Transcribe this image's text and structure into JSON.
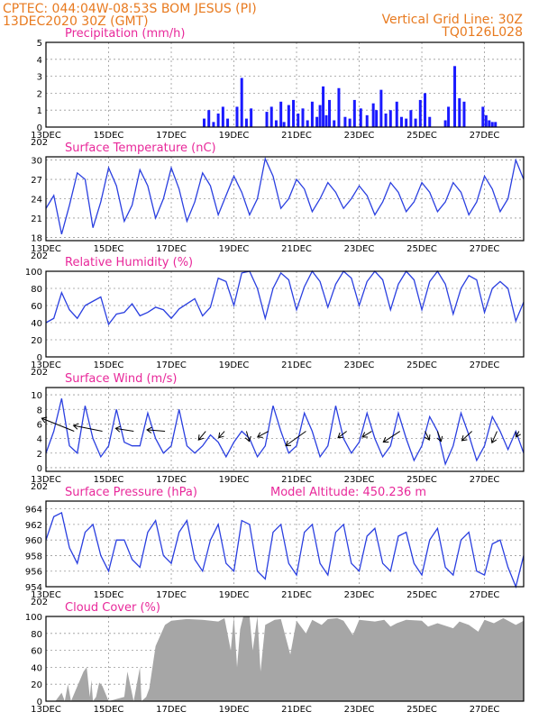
{
  "header": {
    "line1_left": "CPTEC:   044:04W-08:53S   BOM JESUS (PI)",
    "line2_left": "13DEC2020 30Z (GMT)",
    "line1_right": "Vertical Grid Line: 30Z",
    "line2_right": "TQ0126L028"
  },
  "colors": {
    "header_text": "#e87a1f",
    "panel_title": "#e8289a",
    "series_line": "#2a3fe0",
    "precip_bar": "#1a1aff",
    "cloud_fill": "#a6a6a6",
    "grid": "#999999"
  },
  "x_axis": {
    "tick_labels": [
      "13DEC",
      "15DEC",
      "17DEC",
      "19DEC",
      "21DEC",
      "23DEC",
      "25DEC",
      "27DEC"
    ],
    "tick_days": [
      0,
      2,
      4,
      6,
      8,
      10,
      12,
      14
    ],
    "range_days": [
      0,
      15.25
    ],
    "sub_label": "202"
  },
  "chart_data": [
    {
      "id": "precip",
      "type": "bar",
      "title": "Precipitation (mm/h)",
      "ylim": [
        0,
        5
      ],
      "yticks": [
        0,
        1,
        2,
        3,
        4,
        5
      ],
      "grid": true,
      "series": [
        {
          "name": "",
          "x": [
            5.05,
            5.2,
            5.35,
            5.5,
            5.65,
            5.8,
            6.1,
            6.25,
            6.4,
            6.55,
            7.05,
            7.2,
            7.35,
            7.5,
            7.6,
            7.75,
            7.9,
            8.05,
            8.2,
            8.35,
            8.5,
            8.65,
            8.75,
            8.85,
            8.95,
            9.05,
            9.2,
            9.35,
            9.55,
            9.7,
            9.85,
            10.05,
            10.25,
            10.45,
            10.55,
            10.7,
            10.85,
            11.0,
            11.2,
            11.35,
            11.5,
            11.65,
            11.8,
            11.95,
            12.1,
            12.25,
            12.75,
            12.85,
            13.05,
            13.2,
            13.35,
            13.95,
            14.05,
            14.15,
            14.25,
            14.35
          ],
          "values": [
            0.5,
            1.0,
            0.3,
            0.8,
            1.2,
            0.5,
            1.2,
            2.9,
            0.5,
            1.1,
            0.9,
            1.2,
            0.4,
            1.5,
            0.3,
            1.3,
            1.6,
            0.8,
            1.1,
            0.4,
            1.5,
            0.6,
            1.3,
            2.4,
            0.7,
            1.6,
            0.4,
            2.3,
            0.6,
            0.5,
            1.6,
            1.1,
            0.7,
            1.4,
            1.0,
            2.2,
            0.8,
            1.0,
            1.5,
            0.6,
            0.5,
            1.0,
            0.5,
            1.6,
            2.0,
            0.6,
            0.4,
            1.2,
            3.6,
            1.7,
            1.5,
            1.2,
            0.7,
            0.4,
            0.3,
            0.3
          ]
        }
      ]
    },
    {
      "id": "temperature",
      "type": "line",
      "title": "Surface Temperature (nC)",
      "ylim": [
        17.5,
        30.5
      ],
      "yticks": [
        18,
        21,
        24,
        27,
        30
      ],
      "grid": true,
      "series": [
        {
          "name": "",
          "x": [
            0,
            0.25,
            0.5,
            0.75,
            1.0,
            1.25,
            1.5,
            1.75,
            2.0,
            2.25,
            2.5,
            2.75,
            3.0,
            3.25,
            3.5,
            3.75,
            4.0,
            4.25,
            4.5,
            4.75,
            5.0,
            5.25,
            5.5,
            5.75,
            6.0,
            6.25,
            6.5,
            6.75,
            7.0,
            7.25,
            7.5,
            7.75,
            8.0,
            8.25,
            8.5,
            8.75,
            9.0,
            9.25,
            9.5,
            9.75,
            10.0,
            10.25,
            10.5,
            10.75,
            11.0,
            11.25,
            11.5,
            11.75,
            12.0,
            12.25,
            12.5,
            12.75,
            13.0,
            13.25,
            13.5,
            13.75,
            14.0,
            14.25,
            14.5,
            14.75,
            15.0,
            15.25
          ],
          "values": [
            22.5,
            24.5,
            18.5,
            23,
            28,
            27,
            19.5,
            23.5,
            28.8,
            26,
            20.5,
            23,
            28.5,
            26,
            21,
            24,
            28.8,
            25.5,
            20.5,
            23.5,
            28,
            26,
            21.5,
            24.5,
            27.5,
            25,
            21.5,
            24,
            30.2,
            27.5,
            22.5,
            24,
            27,
            25.5,
            22,
            24,
            26.5,
            25,
            22.5,
            24,
            26,
            24.5,
            21.5,
            23.5,
            26.5,
            25,
            22,
            23.5,
            26.5,
            25,
            22,
            23.5,
            26.5,
            25,
            21.5,
            23.5,
            27.5,
            25.5,
            22,
            24,
            30,
            27
          ]
        }
      ]
    },
    {
      "id": "humidity",
      "type": "line",
      "title": "Relative Humidity (%)",
      "ylim": [
        0,
        100
      ],
      "yticks": [
        0,
        20,
        40,
        60,
        80,
        100
      ],
      "grid": true,
      "series": [
        {
          "name": "",
          "x": [
            0,
            0.25,
            0.5,
            0.75,
            1.0,
            1.25,
            1.5,
            1.75,
            2.0,
            2.25,
            2.5,
            2.75,
            3.0,
            3.25,
            3.5,
            3.75,
            4.0,
            4.25,
            4.5,
            4.75,
            5.0,
            5.25,
            5.5,
            5.75,
            6.0,
            6.25,
            6.5,
            6.75,
            7.0,
            7.25,
            7.5,
            7.75,
            8.0,
            8.25,
            8.5,
            8.75,
            9.0,
            9.25,
            9.5,
            9.75,
            10.0,
            10.25,
            10.5,
            10.75,
            11.0,
            11.25,
            11.5,
            11.75,
            12.0,
            12.25,
            12.5,
            12.75,
            13.0,
            13.25,
            13.5,
            13.75,
            14.0,
            14.25,
            14.5,
            14.75,
            15.0,
            15.25
          ],
          "values": [
            40,
            45,
            75,
            55,
            45,
            60,
            65,
            70,
            38,
            50,
            52,
            62,
            48,
            52,
            58,
            55,
            45,
            56,
            62,
            68,
            48,
            58,
            92,
            88,
            60,
            98,
            100,
            80,
            45,
            80,
            98,
            90,
            55,
            82,
            100,
            88,
            58,
            85,
            100,
            92,
            60,
            88,
            100,
            90,
            55,
            85,
            100,
            90,
            55,
            88,
            100,
            85,
            50,
            80,
            95,
            90,
            52,
            80,
            88,
            80,
            42,
            64
          ]
        }
      ]
    },
    {
      "id": "wind",
      "type": "line",
      "title": "Surface Wind (m/s)",
      "ylim": [
        -0.5,
        11
      ],
      "yticks": [
        0,
        2,
        4,
        6,
        8,
        10
      ],
      "grid": true,
      "series": [
        {
          "name": "",
          "x": [
            0,
            0.25,
            0.5,
            0.75,
            1.0,
            1.25,
            1.5,
            1.75,
            2.0,
            2.25,
            2.5,
            2.75,
            3.0,
            3.25,
            3.5,
            3.75,
            4.0,
            4.25,
            4.5,
            4.75,
            5.0,
            5.25,
            5.5,
            5.75,
            6.0,
            6.25,
            6.5,
            6.75,
            7.0,
            7.25,
            7.5,
            7.75,
            8.0,
            8.25,
            8.5,
            8.75,
            9.0,
            9.25,
            9.5,
            9.75,
            10.0,
            10.25,
            10.5,
            10.75,
            11.0,
            11.25,
            11.5,
            11.75,
            12.0,
            12.25,
            12.5,
            12.75,
            13.0,
            13.25,
            13.5,
            13.75,
            14.0,
            14.25,
            14.5,
            14.75,
            15.0,
            15.25
          ],
          "values": [
            2,
            5,
            9.5,
            3,
            2,
            8.5,
            4,
            1.5,
            3,
            8,
            3.5,
            3,
            3,
            7.5,
            4,
            2,
            3,
            8,
            3,
            2,
            3,
            4.5,
            3.5,
            1.5,
            3.5,
            5,
            4,
            1.5,
            3,
            8.5,
            5,
            2,
            3,
            7.5,
            5,
            1.5,
            3,
            8.5,
            4,
            2,
            3.5,
            7.5,
            4,
            1.5,
            3,
            7.5,
            4,
            1,
            3,
            7,
            5,
            0.5,
            3,
            7.5,
            4.5,
            1,
            3,
            7,
            5,
            2.5,
            5,
            2
          ]
        }
      ],
      "vectors": [
        {
          "x": 0.9,
          "u": -4.5,
          "v": 1.8
        },
        {
          "x": 1.8,
          "u": -4,
          "v": 0.8
        },
        {
          "x": 2.8,
          "u": -2.5,
          "v": 0.4
        },
        {
          "x": 3.8,
          "u": -2.5,
          "v": 0.2
        },
        {
          "x": 5.1,
          "u": -1,
          "v": -1.2
        },
        {
          "x": 5.7,
          "u": -0.8,
          "v": -0.9
        },
        {
          "x": 6.4,
          "u": 0.4,
          "v": -1.4
        },
        {
          "x": 7.1,
          "u": -1.5,
          "v": -0.8
        },
        {
          "x": 8.3,
          "u": -2.8,
          "v": -2
        },
        {
          "x": 9.6,
          "u": -1.2,
          "v": -0.9
        },
        {
          "x": 10.4,
          "u": -1.3,
          "v": -0.8
        },
        {
          "x": 11.3,
          "u": -2.3,
          "v": -1.5
        },
        {
          "x": 12.1,
          "u": 0.6,
          "v": -1.2
        },
        {
          "x": 12.5,
          "u": 0.5,
          "v": -1.4
        },
        {
          "x": 13.6,
          "u": -1.4,
          "v": -1.3
        },
        {
          "x": 14.4,
          "u": -0.7,
          "v": -1.6
        },
        {
          "x": 15.1,
          "u": -0.4,
          "v": -0.8
        }
      ]
    },
    {
      "id": "pressure",
      "type": "line",
      "title": "Surface Pressure (hPa)",
      "annotation": "Model Altitude: 450.236  m",
      "ylim": [
        954,
        965
      ],
      "yticks": [
        954,
        956,
        958,
        960,
        962,
        964
      ],
      "grid": true,
      "series": [
        {
          "name": "",
          "x": [
            0,
            0.25,
            0.5,
            0.75,
            1.0,
            1.25,
            1.5,
            1.75,
            2.0,
            2.25,
            2.5,
            2.75,
            3.0,
            3.25,
            3.5,
            3.75,
            4.0,
            4.25,
            4.5,
            4.75,
            5.0,
            5.25,
            5.5,
            5.75,
            6.0,
            6.25,
            6.5,
            6.75,
            7.0,
            7.25,
            7.5,
            7.75,
            8.0,
            8.25,
            8.5,
            8.75,
            9.0,
            9.25,
            9.5,
            9.75,
            10.0,
            10.25,
            10.5,
            10.75,
            11.0,
            11.25,
            11.5,
            11.75,
            12.0,
            12.25,
            12.5,
            12.75,
            13.0,
            13.25,
            13.5,
            13.75,
            14.0,
            14.25,
            14.5,
            14.75,
            15.0,
            15.25
          ],
          "values": [
            960,
            963,
            963.5,
            959,
            957,
            961,
            962,
            958,
            956,
            960,
            960,
            957.5,
            956.5,
            961,
            962.5,
            958,
            957,
            961,
            962.5,
            957.5,
            956,
            960,
            962,
            957,
            956,
            962.5,
            962,
            956,
            955,
            961,
            962,
            957,
            955.5,
            961,
            962,
            957,
            955.5,
            961,
            962,
            957,
            956,
            960.5,
            961.5,
            957,
            956,
            960.5,
            961,
            957,
            955.5,
            960,
            961.5,
            956.5,
            955.5,
            960,
            961,
            956,
            955.5,
            959.5,
            960,
            956.5,
            954,
            958
          ]
        }
      ]
    },
    {
      "id": "cloud",
      "type": "area",
      "title": "Cloud Cover (%)",
      "ylim": [
        0,
        100
      ],
      "yticks": [
        0,
        20,
        40,
        60,
        80,
        100
      ],
      "grid": true,
      "series": [
        {
          "name": "",
          "x": [
            0,
            0.3,
            0.5,
            0.6,
            0.7,
            0.8,
            1.2,
            1.3,
            1.4,
            1.45,
            1.5,
            1.6,
            1.7,
            1.8,
            2.0,
            2.5,
            2.6,
            2.8,
            3.0,
            3.05,
            3.2,
            3.3,
            3.5,
            3.8,
            4.0,
            4.5,
            5.0,
            5.5,
            5.7,
            5.9,
            6.0,
            6.1,
            6.2,
            6.3,
            6.5,
            6.6,
            6.75,
            6.85,
            7.0,
            7.3,
            7.5,
            7.8,
            8.0,
            8.3,
            8.5,
            8.8,
            9.0,
            9.3,
            9.5,
            9.8,
            10.0,
            10.5,
            10.8,
            11.0,
            11.2,
            11.5,
            12.0,
            12.2,
            12.5,
            13.0,
            13.2,
            13.5,
            13.8,
            14.0,
            14.3,
            14.6,
            15.0,
            15.25
          ],
          "values": [
            0,
            0,
            10,
            0,
            20,
            0,
            35,
            40,
            5,
            25,
            0,
            5,
            22,
            18,
            0,
            5,
            35,
            0,
            40,
            0,
            5,
            15,
            65,
            90,
            95,
            97,
            96,
            94,
            98,
            60,
            100,
            40,
            85,
            100,
            100,
            60,
            100,
            35,
            90,
            96,
            97,
            55,
            95,
            80,
            96,
            90,
            97,
            98,
            95,
            78,
            96,
            94,
            96,
            88,
            92,
            96,
            95,
            88,
            92,
            86,
            94,
            90,
            82,
            96,
            92,
            98,
            90,
            95
          ]
        }
      ]
    }
  ]
}
